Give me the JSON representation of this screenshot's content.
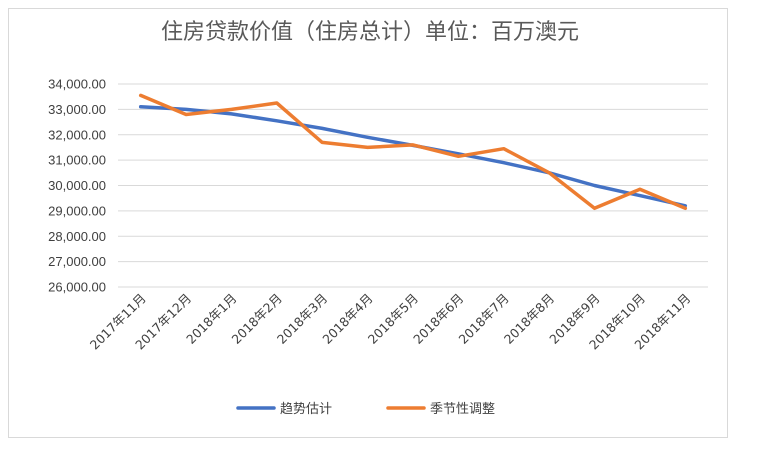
{
  "chart_data": {
    "type": "line",
    "title": "住房贷款价值（住房总计）单位：百万澳元",
    "categories": [
      "2017年11月",
      "2017年12月",
      "2018年1月",
      "2018年2月",
      "2018年3月",
      "2018年4月",
      "2018年5月",
      "2018年6月",
      "2018年7月",
      "2018年8月",
      "2018年9月",
      "2018年10月",
      "2018年11月"
    ],
    "series": [
      {
        "name": "趋势估计",
        "color": "#4472c4",
        "values": [
          33100,
          33000,
          32820,
          32550,
          32250,
          31900,
          31580,
          31250,
          30900,
          30500,
          30000,
          29600,
          29200
        ]
      },
      {
        "name": "季节性调整",
        "color": "#ed7d31",
        "values": [
          33550,
          32800,
          33000,
          33250,
          31700,
          31500,
          31600,
          31150,
          31450,
          30500,
          29100,
          29850,
          29100
        ]
      }
    ],
    "yticks": [
      "34,000.00",
      "33,000.00",
      "32,000.00",
      "31,000.00",
      "30,000.00",
      "29,000.00",
      "28,000.00",
      "27,000.00",
      "26,000.00"
    ],
    "ylim": [
      26000,
      34000
    ],
    "grid": true,
    "legend": "bottom"
  }
}
